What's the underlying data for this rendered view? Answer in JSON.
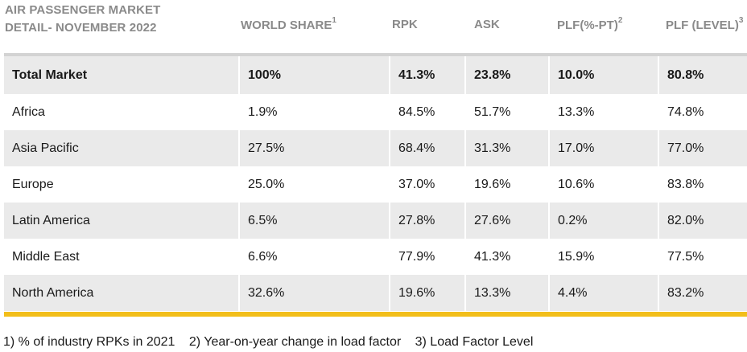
{
  "title": {
    "line1": "AIR PASSENGER MARKET",
    "line2": "DETAIL- NOVEMBER 2022"
  },
  "headers": {
    "world_share": "WORLD SHARE",
    "world_share_sup": "1",
    "rpk": "RPK",
    "ask": "ASK",
    "plf_pt": "PLF(%-PT)",
    "plf_pt_sup": "2",
    "plf_level": "PLF (LEVEL)",
    "plf_level_sup": "3"
  },
  "rows": [
    {
      "region": "Total Market",
      "world_share": "100%",
      "rpk": "41.3%",
      "ask": "23.8%",
      "plf_pt": "10.0%",
      "plf_level": "80.8%"
    },
    {
      "region": "Africa",
      "world_share": "1.9%",
      "rpk": "84.5%",
      "ask": "51.7%",
      "plf_pt": "13.3%",
      "plf_level": "74.8%"
    },
    {
      "region": "Asia Pacific",
      "world_share": "27.5%",
      "rpk": "68.4%",
      "ask": "31.3%",
      "plf_pt": "17.0%",
      "plf_level": "77.0%"
    },
    {
      "region": "Europe",
      "world_share": "25.0%",
      "rpk": "37.0%",
      "ask": "19.6%",
      "plf_pt": "10.6%",
      "plf_level": "83.8%"
    },
    {
      "region": "Latin America",
      "world_share": "6.5%",
      "rpk": "27.8%",
      "ask": "27.6%",
      "plf_pt": "0.2%",
      "plf_level": "82.0%"
    },
    {
      "region": "Middle East",
      "world_share": "6.6%",
      "rpk": "77.9%",
      "ask": "41.3%",
      "plf_pt": "15.9%",
      "plf_level": "77.5%"
    },
    {
      "region": "North America",
      "world_share": "32.6%",
      "rpk": "19.6%",
      "ask": "13.3%",
      "plf_pt": "4.4%",
      "plf_level": "83.2%"
    }
  ],
  "footnotes": [
    "1) % of industry RPKs in 2021",
    "2) Year-on-year change in load factor",
    "3) Load Factor Level"
  ],
  "colors": {
    "header_text": "#8a8a8a",
    "row_shade": "#eaeaea",
    "accent_rule": "#f2be1a"
  }
}
